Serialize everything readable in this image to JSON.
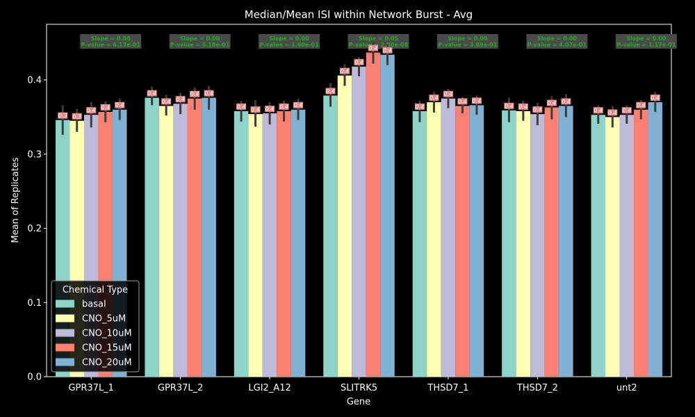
{
  "chart_data": {
    "type": "bar",
    "title": "Median/Mean ISI within Network Burst - Avg",
    "xlabel": "Gene",
    "ylabel": "Mean of Replicates",
    "ylim": [
      0,
      0.475
    ],
    "yticks": [
      "0.0",
      "0.1",
      "0.2",
      "0.3",
      "0.4"
    ],
    "ytick_values": [
      0,
      0.1,
      0.2,
      0.3,
      0.4
    ],
    "categories": [
      "GPR37L_1",
      "GPR37L_2",
      "LGI2_A12",
      "SLITRK5",
      "THSD7_1",
      "THSD7_2",
      "unt2"
    ],
    "legend": {
      "title": "Chemical Type",
      "placement": "lower-left"
    },
    "series": [
      {
        "name": "basal",
        "color": "#8dd3c7",
        "values": [
          0.346,
          0.376,
          0.358,
          0.379,
          0.358,
          0.359,
          0.353
        ],
        "err_low": [
          0.326,
          0.366,
          0.344,
          0.364,
          0.343,
          0.343,
          0.341
        ],
        "err_high": [
          0.366,
          0.391,
          0.372,
          0.396,
          0.372,
          0.376,
          0.366
        ],
        "labels": [
          "0.3",
          "0.4",
          "0.4",
          "0.4",
          "0.4",
          "0.4",
          "0.4"
        ]
      },
      {
        "name": "CNO_5uM",
        "color": "#ffffb3",
        "values": [
          0.345,
          0.365,
          0.354,
          0.406,
          0.37,
          0.358,
          0.35
        ],
        "err_low": [
          0.33,
          0.352,
          0.337,
          0.392,
          0.356,
          0.345,
          0.336
        ],
        "err_high": [
          0.361,
          0.38,
          0.373,
          0.421,
          0.384,
          0.372,
          0.365
        ],
        "labels": [
          "0.3",
          "0.4",
          "0.4",
          "0.4",
          "0.4",
          "0.4",
          "0.4"
        ]
      },
      {
        "name": "CNO_10uM",
        "color": "#bebada",
        "values": [
          0.353,
          0.368,
          0.355,
          0.418,
          0.375,
          0.354,
          0.353
        ],
        "err_low": [
          0.336,
          0.354,
          0.34,
          0.405,
          0.362,
          0.339,
          0.341
        ],
        "err_high": [
          0.37,
          0.383,
          0.37,
          0.431,
          0.388,
          0.369,
          0.366
        ],
        "labels": [
          "0.4",
          "0.4",
          "0.4",
          "0.4",
          "0.4",
          "0.4",
          "0.4"
        ]
      },
      {
        "name": "CNO_15uM",
        "color": "#fb8072",
        "values": [
          0.357,
          0.375,
          0.358,
          0.437,
          0.365,
          0.363,
          0.36
        ],
        "err_low": [
          0.343,
          0.36,
          0.344,
          0.422,
          0.355,
          0.347,
          0.347
        ],
        "err_high": [
          0.371,
          0.39,
          0.372,
          0.451,
          0.377,
          0.378,
          0.373
        ],
        "labels": [
          "0.4",
          "0.4",
          "0.4",
          "0.4",
          "0.4",
          "0.4",
          "0.4"
        ]
      },
      {
        "name": "CNO_20uM",
        "color": "#80b1d3",
        "values": [
          0.36,
          0.376,
          0.36,
          0.434,
          0.366,
          0.365,
          0.37
        ],
        "err_low": [
          0.346,
          0.36,
          0.346,
          0.42,
          0.353,
          0.35,
          0.357
        ],
        "err_high": [
          0.375,
          0.392,
          0.375,
          0.448,
          0.379,
          0.381,
          0.384
        ],
        "labels": [
          "0.4",
          "0.4",
          "0.4",
          "0.4",
          "0.4",
          "0.4",
          "0.4"
        ]
      }
    ],
    "annotations": [
      {
        "line1": "Slope = 0.00",
        "line2": "P-value = 6.13e-01"
      },
      {
        "line1": "Slope = 0.00",
        "line2": "P-value = 5.18e-01"
      },
      {
        "line1": "Slope = 0.00",
        "line2": "P-value = 1.60e-01"
      },
      {
        "line1": "Slope = 0.05",
        "line2": "P-value = 2.80e-08"
      },
      {
        "line1": "Slope = 0.00",
        "line2": "P-value = 3.89e-01"
      },
      {
        "line1": "Slope = 0.00",
        "line2": "P-value = 4.07e-01"
      },
      {
        "line1": "Slope = 0.00",
        "line2": "P-value = 1.17e-01"
      }
    ]
  }
}
